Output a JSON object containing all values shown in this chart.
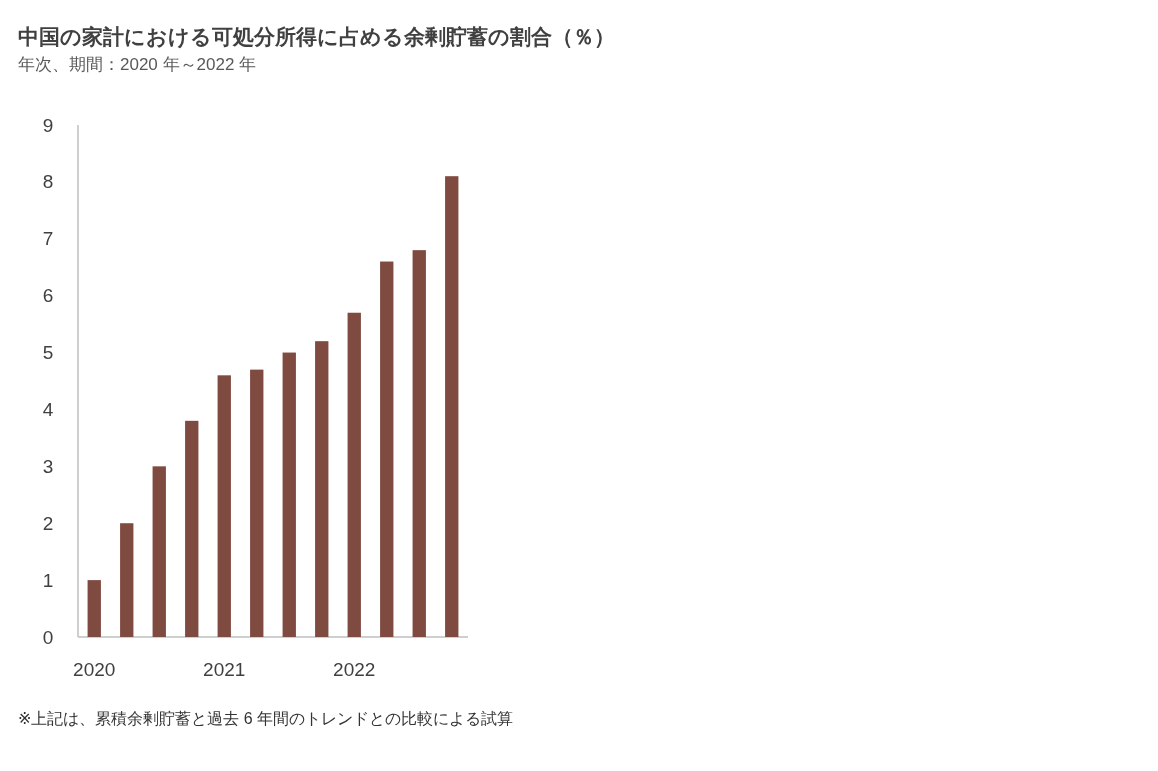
{
  "chart_data": {
    "type": "bar",
    "title": "中国の家計における可処分所得に占める余剰貯蓄の割合（％）",
    "subtitle": "年次、期間：2020 年～2022 年",
    "categories": [
      "2020",
      null,
      null,
      null,
      "2021",
      null,
      null,
      null,
      "2022",
      null,
      null,
      null
    ],
    "values": [
      1.0,
      2.0,
      3.0,
      3.8,
      4.6,
      4.7,
      5.0,
      5.2,
      5.7,
      6.6,
      6.8,
      8.1
    ],
    "color": "#7f4a40",
    "ylim": [
      0,
      9
    ],
    "yticks": [
      0,
      1,
      2,
      3,
      4,
      5,
      6,
      7,
      8,
      9
    ],
    "annotations": [
      "※上記は、累積余剰貯蓄と過去 6 年間のトレンドとの比較による試算"
    ]
  }
}
